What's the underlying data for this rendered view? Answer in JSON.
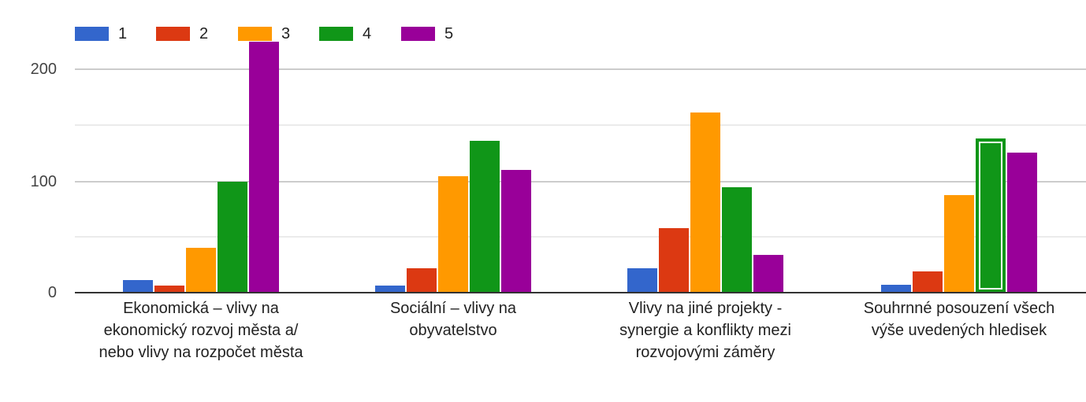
{
  "chart_data": {
    "type": "bar",
    "title": "",
    "xlabel": "",
    "ylabel": "",
    "ylim": [
      0,
      200
    ],
    "yticks": [
      0,
      100,
      200
    ],
    "minor_gridlines": [
      50,
      150
    ],
    "grid": true,
    "legend_position": "top",
    "categories": [
      "Ekonomická – vlivy na ekonomický rozvoj města a/ nebo vlivy na rozpočet města",
      "Sociální – vlivy na obyvatelstvo",
      "Vlivy na jiné projekty - synergie a konflikty mezi rozvojovými záměry",
      "Souhrnné posouzení všech výše uvedených hledisek"
    ],
    "category_lines": [
      [
        "Ekonomická – vlivy na",
        "ekonomický rozvoj města a/",
        "nebo vlivy na rozpočet města"
      ],
      [
        "Sociální – vlivy na",
        "obyvatelstvo"
      ],
      [
        "Vlivy na jiné projekty -",
        "synergie a konflikty mezi",
        "rozvojovými záměry"
      ],
      [
        "Souhrnné posouzení všech",
        "výše uvedených hledisek"
      ]
    ],
    "series": [
      {
        "name": "1",
        "color": "#3366cc",
        "values": [
          11,
          6,
          22,
          7
        ]
      },
      {
        "name": "2",
        "color": "#dc3912",
        "values": [
          6,
          22,
          58,
          19
        ]
      },
      {
        "name": "3",
        "color": "#ff9900",
        "values": [
          40,
          104,
          161,
          87
        ]
      },
      {
        "name": "4",
        "color": "#109618",
        "values": [
          99,
          136,
          94,
          138
        ]
      },
      {
        "name": "5",
        "color": "#990099",
        "values": [
          224,
          110,
          34,
          125
        ]
      }
    ],
    "highlighted": {
      "series": "4",
      "category_index": 3
    }
  },
  "legend": {
    "items": [
      {
        "label": "1",
        "color": "#3366cc"
      },
      {
        "label": "2",
        "color": "#dc3912"
      },
      {
        "label": "3",
        "color": "#ff9900"
      },
      {
        "label": "4",
        "color": "#109618"
      },
      {
        "label": "5",
        "color": "#990099"
      }
    ]
  },
  "axis": {
    "y_tick_labels": [
      "0",
      "100",
      "200"
    ]
  }
}
